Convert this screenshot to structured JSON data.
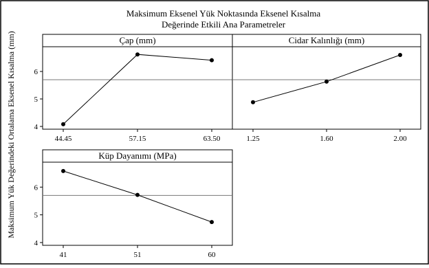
{
  "chart_title": [
    "Maksimum Eksenel Yük Noktasında Eksenel Kısalma",
    "Değerinde Etkili Ana Parametreler"
  ],
  "ylabel": "Maksimum Yük Değerindeki Ortalama Eksenel Kısalma (mm)",
  "mean_line": 5.7,
  "ylim": [
    3.9,
    6.9
  ],
  "yticks": [
    4,
    5,
    6
  ],
  "chart_data": [
    {
      "type": "line",
      "title": "Çap (mm)",
      "categories": [
        "44.45",
        "57.15",
        "63.50"
      ],
      "values": [
        4.08,
        6.62,
        6.41
      ],
      "ylim": [
        3.9,
        6.9
      ]
    },
    {
      "type": "line",
      "title": "Cidar Kalınlığı (mm)",
      "categories": [
        "1.25",
        "1.60",
        "2.00"
      ],
      "values": [
        4.88,
        5.63,
        6.6
      ],
      "ylim": [
        3.9,
        6.9
      ]
    },
    {
      "type": "line",
      "title": "Küp Dayanımı (MPa)",
      "categories": [
        "41",
        "51",
        "60"
      ],
      "values": [
        6.58,
        5.72,
        4.74
      ],
      "ylim": [
        3.9,
        6.9
      ]
    }
  ]
}
